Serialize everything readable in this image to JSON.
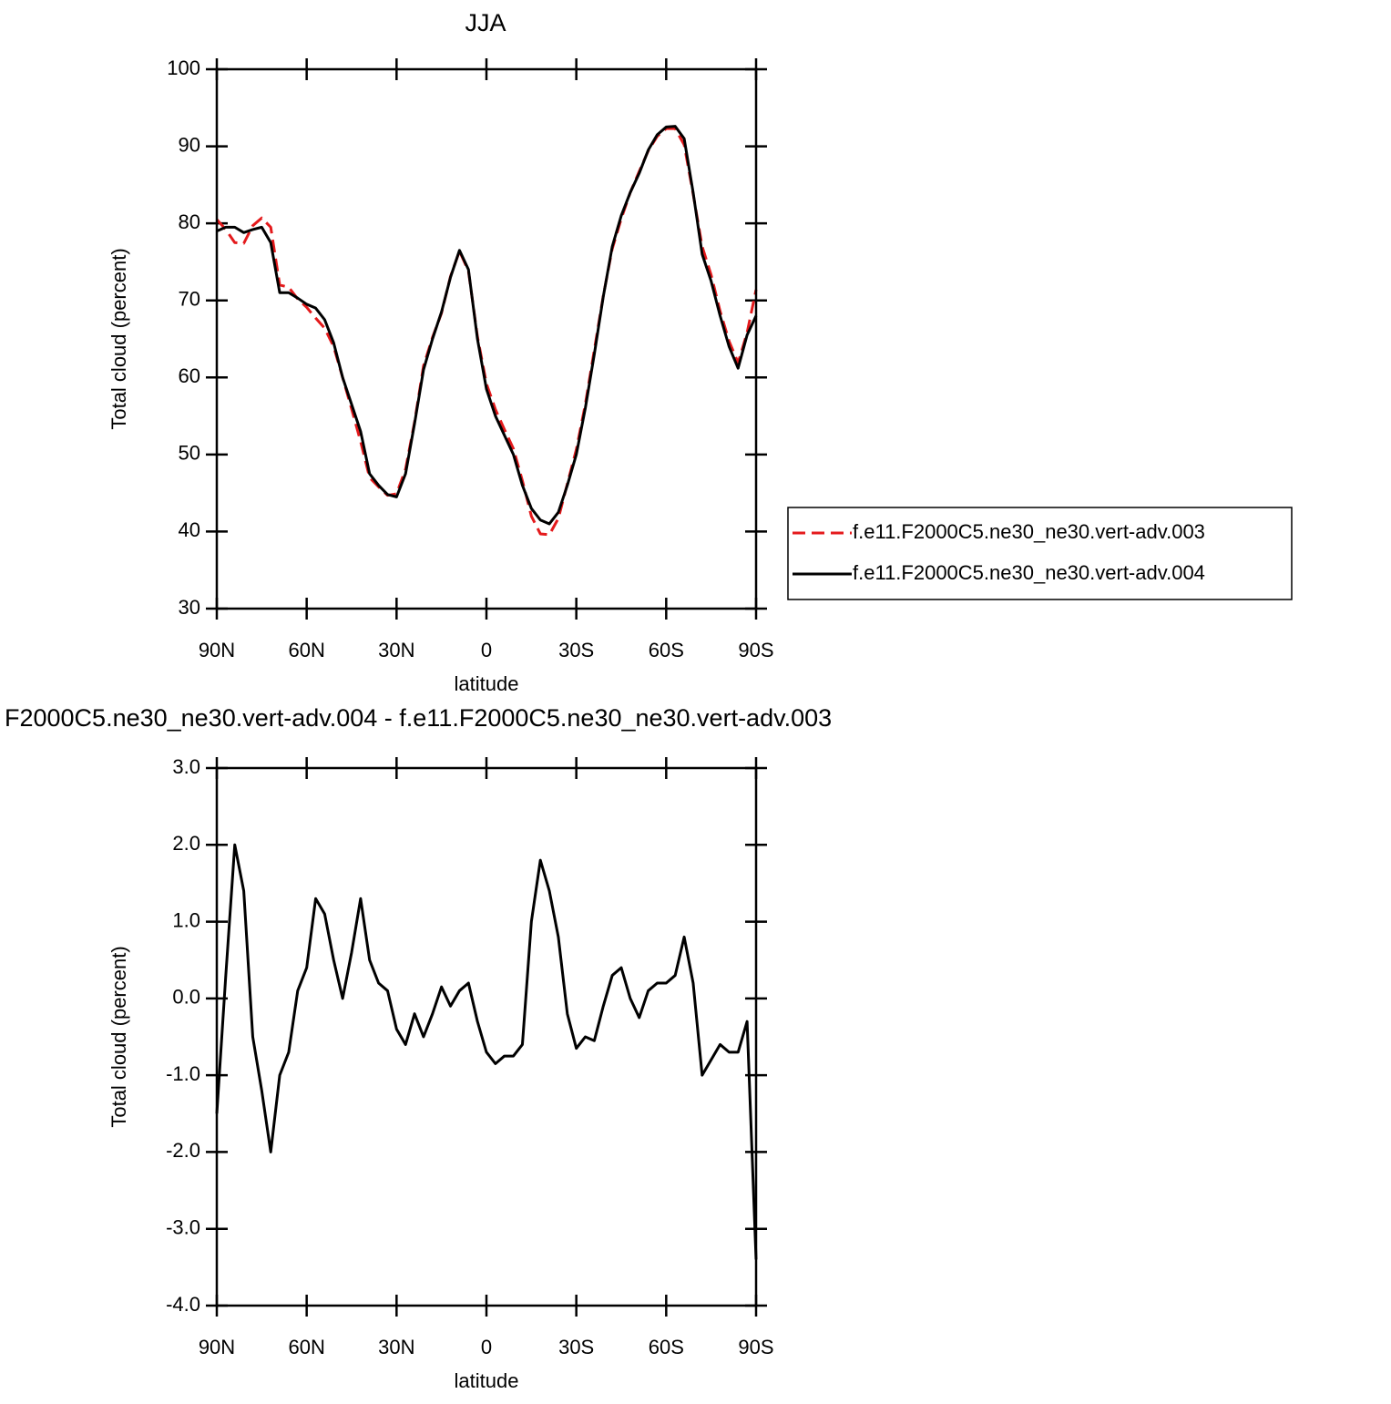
{
  "chart_data": [
    {
      "type": "line",
      "title": "JJA",
      "xlabel": "latitude",
      "ylabel": "Total cloud (percent)",
      "x": [
        90,
        87,
        84,
        81,
        78,
        75,
        72,
        69,
        66,
        63,
        60,
        57,
        54,
        51,
        48,
        45,
        42,
        39,
        36,
        33,
        30,
        27,
        24,
        21,
        18,
        15,
        12,
        9,
        6,
        3,
        0,
        -3,
        -6,
        -9,
        -12,
        -15,
        -18,
        -21,
        -24,
        -27,
        -30,
        -33,
        -36,
        -39,
        -42,
        -45,
        -48,
        -51,
        -54,
        -57,
        -60,
        -63,
        -66,
        -69,
        -72,
        -75,
        -78,
        -81,
        -84,
        -87,
        -90
      ],
      "xlim": [
        90,
        -90
      ],
      "xticks": [
        {
          "value": 90,
          "label": "90N"
        },
        {
          "value": 60,
          "label": "60N"
        },
        {
          "value": 30,
          "label": "30N"
        },
        0,
        {
          "value": -30,
          "label": "30S"
        },
        {
          "value": -60,
          "label": "60S"
        },
        {
          "value": -90,
          "label": "90S"
        }
      ],
      "ylim": [
        30,
        100
      ],
      "yticks": [
        30,
        40,
        50,
        60,
        70,
        80,
        90,
        100
      ],
      "legend": "right",
      "series": [
        {
          "name": "f.e11.F2000C5.ne30_ne30.vert-adv.003",
          "color": "#e41a1c",
          "linestyle": "dashed",
          "values": [
            80.5,
            79.2,
            77.5,
            77.4,
            79.7,
            80.7,
            79.5,
            72,
            71.7,
            70.2,
            69.1,
            67.7,
            66.4,
            64,
            60,
            55.9,
            51.7,
            47,
            45.8,
            44.7,
            44.9,
            48.1,
            54.2,
            61.5,
            65.2,
            68.35,
            73.1,
            76.4,
            73.8,
            65.3,
            59.2,
            55.85,
            53.25,
            50.75,
            46.6,
            42,
            39.7,
            39.6,
            41.7,
            46.2,
            50.65,
            56.5,
            63.55,
            70.6,
            76.7,
            80.6,
            84,
            86.75,
            89.4,
            91.3,
            92.3,
            92.3,
            90.2,
            83.8,
            77,
            73.3,
            68.6,
            64.7,
            61.9,
            65.8,
            71.4
          ]
        },
        {
          "name": "f.e11.F2000C5.ne30_ne30.vert-adv.004",
          "color": "#000000",
          "linestyle": "solid",
          "values": [
            79,
            79.5,
            79.5,
            78.8,
            79.2,
            79.5,
            77.5,
            71,
            71,
            70.3,
            69.5,
            69,
            67.5,
            64.5,
            60,
            56.5,
            53,
            47.5,
            46,
            44.8,
            44.5,
            47.5,
            54,
            61,
            65,
            68.5,
            73,
            76.5,
            74,
            65,
            58.5,
            55,
            52.5,
            50,
            46,
            43,
            41.5,
            41,
            42.5,
            46,
            50,
            56,
            63,
            70.5,
            77,
            81,
            84,
            86.5,
            89.5,
            91.5,
            92.5,
            92.6,
            91,
            84,
            76,
            72.5,
            68,
            64,
            61.2,
            65.5,
            68
          ]
        }
      ]
    },
    {
      "type": "line",
      "title": "F2000C5.ne30_ne30.vert-adv.004 - f.e11.F2000C5.ne30_ne30.vert-adv.003",
      "xlabel": "latitude",
      "ylabel": "Total cloud (percent)",
      "x": [
        90,
        87,
        84,
        81,
        78,
        75,
        72,
        69,
        66,
        63,
        60,
        57,
        54,
        51,
        48,
        45,
        42,
        39,
        36,
        33,
        30,
        27,
        24,
        21,
        18,
        15,
        12,
        9,
        6,
        3,
        0,
        -3,
        -6,
        -9,
        -12,
        -15,
        -18,
        -21,
        -24,
        -27,
        -30,
        -33,
        -36,
        -39,
        -42,
        -45,
        -48,
        -51,
        -54,
        -57,
        -60,
        -63,
        -66,
        -69,
        -72,
        -75,
        -78,
        -81,
        -84,
        -87,
        -90
      ],
      "xlim": [
        90,
        -90
      ],
      "xticks": [
        {
          "value": 90,
          "label": "90N"
        },
        {
          "value": 60,
          "label": "60N"
        },
        {
          "value": 30,
          "label": "30N"
        },
        0,
        {
          "value": -30,
          "label": "30S"
        },
        {
          "value": -60,
          "label": "60S"
        },
        {
          "value": -90,
          "label": "90S"
        }
      ],
      "ylim": [
        -4,
        3
      ],
      "yticks": [
        {
          "value": -4,
          "label": "-4.0"
        },
        {
          "value": -3,
          "label": "-3.0"
        },
        {
          "value": -2,
          "label": "-2.0"
        },
        {
          "value": -1,
          "label": "-1.0"
        },
        {
          "value": 0,
          "label": "0.0"
        },
        {
          "value": 1,
          "label": "1.0"
        },
        {
          "value": 2,
          "label": "2.0"
        },
        {
          "value": 3,
          "label": "3.0"
        }
      ],
      "color": "#000000",
      "values": [
        -1.5,
        0.3,
        2.0,
        1.4,
        -0.5,
        -1.2,
        -2.0,
        -1.0,
        -0.7,
        0.1,
        0.4,
        1.3,
        1.1,
        0.5,
        0.0,
        0.6,
        1.3,
        0.5,
        0.2,
        0.1,
        -0.4,
        -0.6,
        -0.2,
        -0.5,
        -0.2,
        0.15,
        -0.1,
        0.1,
        0.2,
        -0.3,
        -0.7,
        -0.85,
        -0.75,
        -0.75,
        -0.6,
        1.0,
        1.8,
        1.4,
        0.8,
        -0.2,
        -0.65,
        -0.5,
        -0.55,
        -0.1,
        0.3,
        0.4,
        0.0,
        -0.25,
        0.1,
        0.2,
        0.2,
        0.3,
        0.8,
        0.2,
        -1.0,
        -0.8,
        -0.6,
        -0.7,
        -0.7,
        -0.3,
        -3.4
      ]
    }
  ]
}
